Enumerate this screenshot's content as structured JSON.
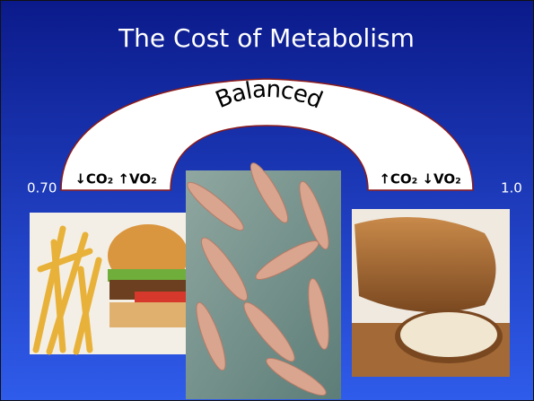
{
  "slide": {
    "title": "The Cost of Metabolism",
    "arch_label": "Balanced",
    "left_value": "0.70",
    "left_label": "↓CO₂ ↑VO₂",
    "right_label": "↑CO₂ ↓VO₂",
    "right_value": "1.0"
  }
}
